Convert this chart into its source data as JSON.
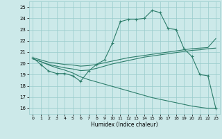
{
  "title": "",
  "xlabel": "Humidex (Indice chaleur)",
  "xlim": [
    -0.5,
    23.5
  ],
  "ylim": [
    15.5,
    25.5
  ],
  "yticks": [
    16,
    17,
    18,
    19,
    20,
    21,
    22,
    23,
    24,
    25
  ],
  "xticks": [
    0,
    1,
    2,
    3,
    4,
    5,
    6,
    7,
    8,
    9,
    10,
    11,
    12,
    13,
    14,
    15,
    16,
    17,
    18,
    19,
    20,
    21,
    22,
    23
  ],
  "bg_color": "#cce9e9",
  "grid_color": "#99cccc",
  "line_color": "#2d7d6b",
  "line1_y": [
    20.5,
    19.9,
    19.3,
    19.1,
    19.1,
    18.9,
    18.4,
    19.3,
    19.9,
    20.3,
    21.8,
    23.7,
    23.9,
    23.9,
    24.0,
    24.7,
    24.5,
    23.1,
    23.0,
    21.3,
    20.6,
    19.0,
    18.9,
    16.0
  ],
  "line2_y": [
    20.4,
    20.15,
    19.9,
    19.75,
    19.6,
    19.5,
    19.35,
    19.4,
    19.55,
    19.75,
    19.95,
    20.1,
    20.25,
    20.4,
    20.55,
    20.65,
    20.75,
    20.85,
    20.95,
    21.05,
    21.15,
    21.2,
    21.3,
    21.35
  ],
  "line3_y": [
    20.5,
    20.3,
    20.1,
    20.0,
    19.9,
    19.85,
    19.75,
    19.8,
    19.9,
    20.05,
    20.2,
    20.35,
    20.5,
    20.6,
    20.7,
    20.8,
    20.9,
    21.0,
    21.1,
    21.2,
    21.3,
    21.35,
    21.4,
    22.2
  ],
  "line4_y": [
    20.4,
    20.15,
    19.85,
    19.6,
    19.4,
    19.15,
    18.8,
    18.55,
    18.35,
    18.15,
    17.95,
    17.75,
    17.55,
    17.35,
    17.15,
    16.95,
    16.8,
    16.65,
    16.5,
    16.35,
    16.2,
    16.1,
    16.0,
    16.0
  ]
}
